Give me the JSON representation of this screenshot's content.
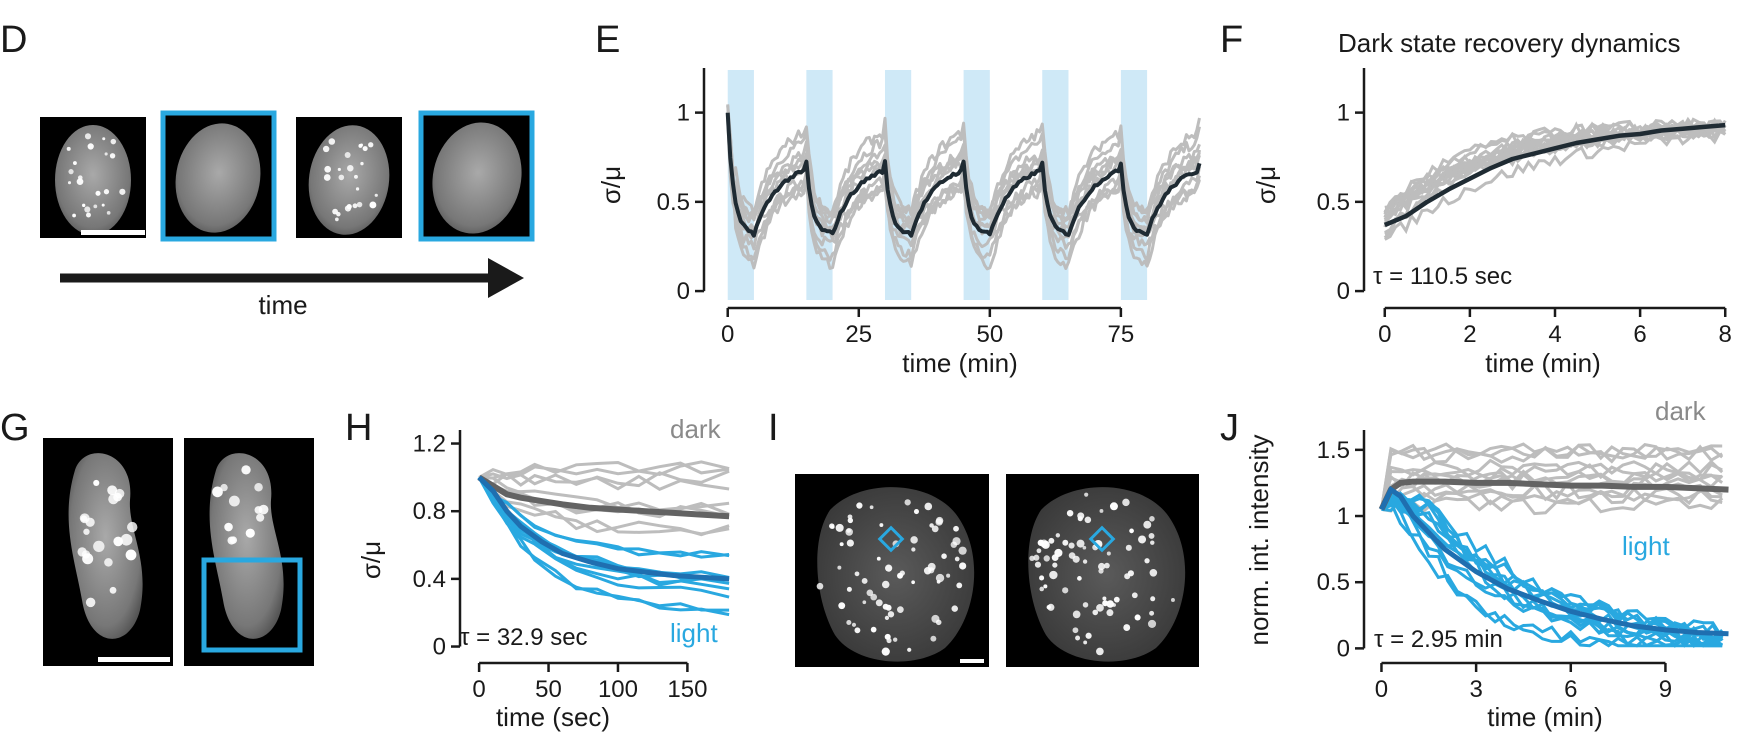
{
  "colors": {
    "axis": "#1a1a1a",
    "gray": "#bdbdbd",
    "dark_gray": "#636363",
    "blue": "#29a8e0",
    "dark_blue": "#1f6fb0",
    "black_line": "#1f2b33",
    "light_band": "#cfe9f7"
  },
  "panels": {
    "D": {
      "label": "D",
      "arrow_label": "time"
    },
    "G": {
      "label": "G"
    },
    "I": {
      "label": "I"
    }
  },
  "chart_data": [
    {
      "panel": "E",
      "label": "E",
      "type": "line",
      "title": "",
      "xlabel": "time (min)",
      "ylabel": "σ/μ",
      "xlim": [
        -3,
        92
      ],
      "ylim": [
        -0.05,
        1.25
      ],
      "xticks": [
        0,
        25,
        50,
        75
      ],
      "yticks": [
        {
          "v": 0,
          "t": "0"
        },
        {
          "v": 0.5,
          "t": "0.5"
        },
        {
          "v": 1,
          "t": "1"
        }
      ],
      "light_intervals": [
        [
          0,
          5
        ],
        [
          15,
          20
        ],
        [
          30,
          35
        ],
        [
          45,
          50
        ],
        [
          60,
          65
        ],
        [
          75,
          80
        ]
      ],
      "pulsed": {
        "cycle": 15,
        "on": 5,
        "low": 0.32,
        "high": 0.72,
        "start": 1.0,
        "end": 90
      },
      "gray_traces": 10,
      "mean_label": ""
    },
    {
      "panel": "F",
      "label": "F",
      "type": "line",
      "title": "Dark state recovery dynamics",
      "xlabel": "time (min)",
      "ylabel": "σ/μ",
      "xlim": [
        -0.3,
        8.3
      ],
      "ylim": [
        -0.05,
        1.25
      ],
      "xticks": [
        {
          "v": 0,
          "t": "0"
        },
        {
          "v": 2,
          "t": "2"
        },
        {
          "v": 4,
          "t": "4"
        },
        {
          "v": 6,
          "t": "6"
        },
        {
          "v": 8,
          "t": "8"
        }
      ],
      "yticks": [
        {
          "v": 0,
          "t": "0"
        },
        {
          "v": 0.5,
          "t": "0.5"
        },
        {
          "v": 1,
          "t": "1"
        }
      ],
      "annotation": "τ = 110.5 sec",
      "mean": {
        "x": [
          0,
          0.5,
          1,
          1.5,
          2,
          2.5,
          3,
          3.5,
          4,
          4.5,
          5,
          5.5,
          6,
          6.5,
          7,
          7.5,
          8
        ],
        "y": [
          0.37,
          0.42,
          0.5,
          0.57,
          0.63,
          0.69,
          0.74,
          0.77,
          0.8,
          0.83,
          0.85,
          0.87,
          0.88,
          0.9,
          0.91,
          0.92,
          0.93
        ]
      },
      "gray_traces": 14
    },
    {
      "panel": "H",
      "label": "H",
      "type": "line",
      "title": "",
      "xlabel": "time (sec)",
      "ylabel": "σ/μ",
      "xlim": [
        -8,
        185
      ],
      "ylim": [
        -0.05,
        1.28
      ],
      "xticks": [
        {
          "v": 0,
          "t": "0"
        },
        {
          "v": 50,
          "t": "50"
        },
        {
          "v": 100,
          "t": "100"
        },
        {
          "v": 150,
          "t": "150"
        }
      ],
      "yticks": [
        {
          "v": 0,
          "t": "0"
        },
        {
          "v": 0.4,
          "t": "0.4"
        },
        {
          "v": 0.8,
          "t": "0.8"
        },
        {
          "v": 1.2,
          "t": "1.2"
        }
      ],
      "annotation": "τ = 32.9 sec",
      "series": [
        {
          "name": "dark",
          "mean": {
            "x": [
              0,
              10,
              20,
              30,
              45,
              60,
              80,
              100,
              120,
              140,
              160,
              180
            ],
            "y": [
              1.0,
              0.95,
              0.9,
              0.88,
              0.86,
              0.84,
              0.82,
              0.81,
              0.8,
              0.79,
              0.78,
              0.77
            ]
          }
        },
        {
          "name": "light",
          "mean": {
            "x": [
              0,
              10,
              20,
              30,
              45,
              60,
              80,
              100,
              120,
              140,
              160,
              180
            ],
            "y": [
              1.0,
              0.92,
              0.8,
              0.71,
              0.62,
              0.55,
              0.5,
              0.46,
              0.44,
              0.42,
              0.41,
              0.4
            ]
          }
        }
      ]
    },
    {
      "panel": "J",
      "label": "J",
      "type": "line",
      "title": "",
      "xlabel": "time (min)",
      "ylabel": "norm. int. intensity",
      "xlim": [
        -0.3,
        11.3
      ],
      "ylim": [
        -0.05,
        1.65
      ],
      "xticks": [
        {
          "v": 0,
          "t": "0"
        },
        {
          "v": 3,
          "t": "3"
        },
        {
          "v": 6,
          "t": "6"
        },
        {
          "v": 9,
          "t": "9"
        }
      ],
      "yticks": [
        {
          "v": 0,
          "t": "0"
        },
        {
          "v": 0.5,
          "t": "0.5"
        },
        {
          "v": 1,
          "t": "1"
        },
        {
          "v": 1.5,
          "t": "1.5"
        }
      ],
      "annotation": "τ = 2.95 min",
      "series": [
        {
          "name": "dark",
          "mean": {
            "x": [
              0,
              0.3,
              0.6,
              1,
              2,
              3,
              4,
              5,
              6,
              7,
              8,
              9,
              10,
              11
            ],
            "y": [
              1.05,
              1.2,
              1.25,
              1.26,
              1.26,
              1.25,
              1.25,
              1.24,
              1.23,
              1.23,
              1.22,
              1.22,
              1.21,
              1.2
            ]
          }
        },
        {
          "name": "light",
          "mean": {
            "x": [
              0,
              0.3,
              0.6,
              1,
              2,
              3,
              4,
              5,
              6,
              7,
              8,
              9,
              10,
              11
            ],
            "y": [
              1.05,
              1.2,
              1.15,
              1.0,
              0.75,
              0.58,
              0.45,
              0.36,
              0.28,
              0.22,
              0.17,
              0.14,
              0.12,
              0.11
            ]
          }
        }
      ]
    }
  ]
}
